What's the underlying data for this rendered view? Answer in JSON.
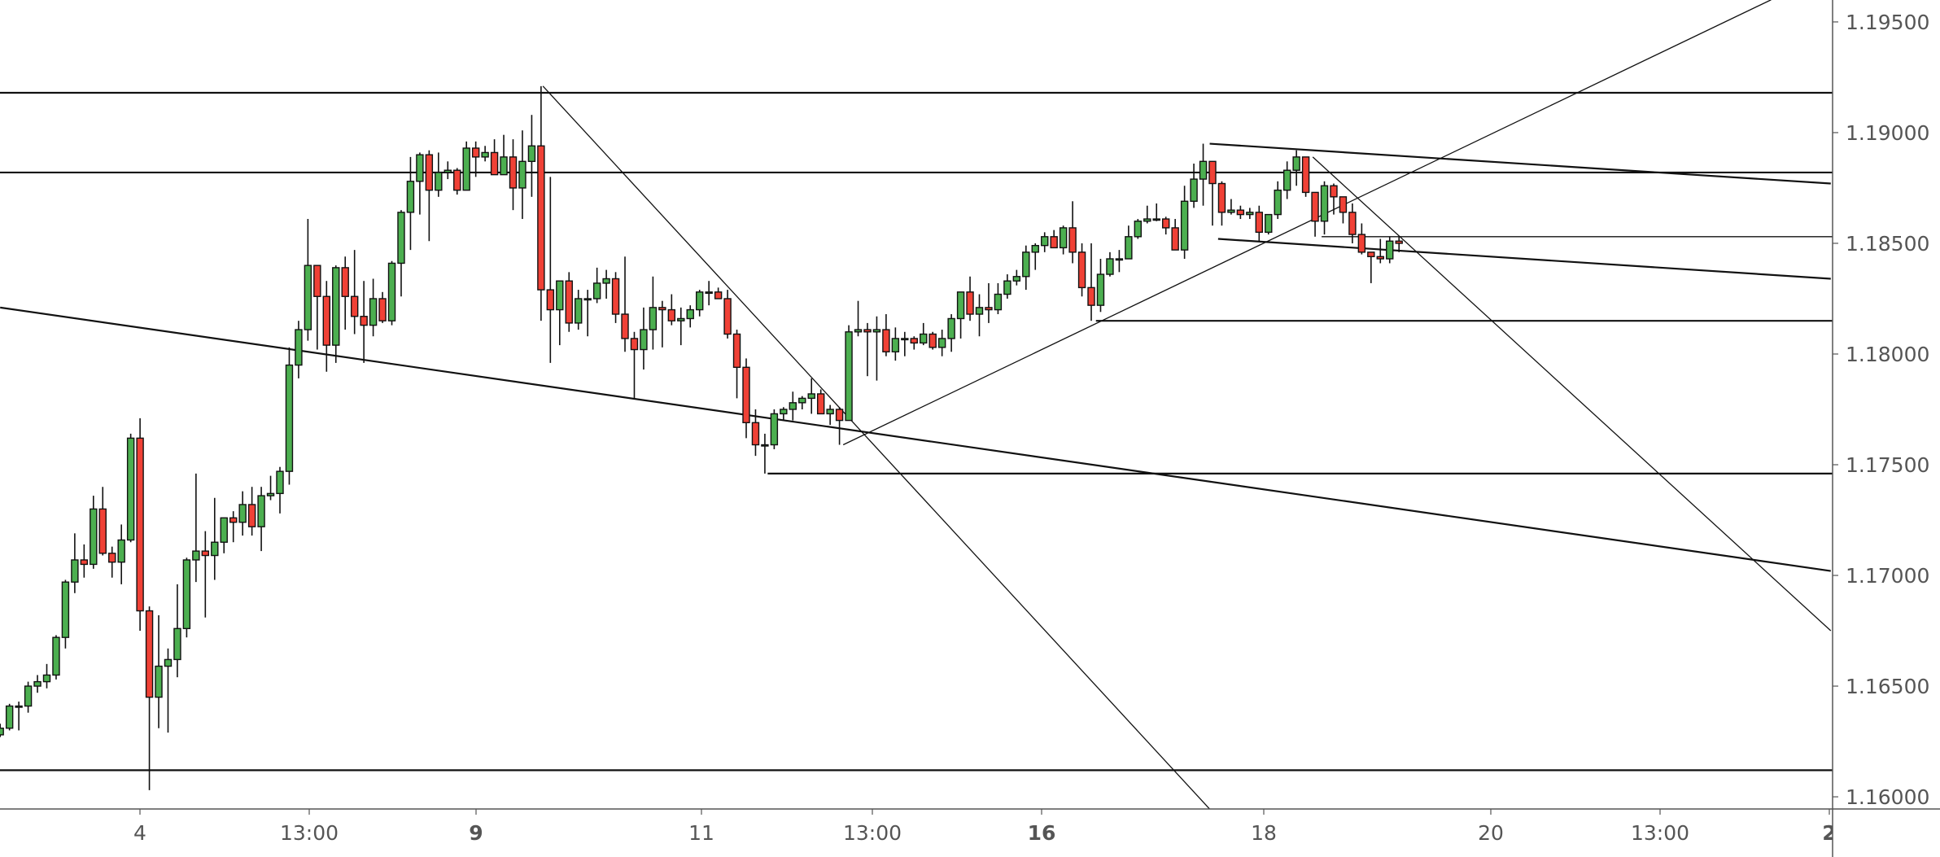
{
  "chart_data": {
    "type": "candlestick",
    "title": "",
    "colors": {
      "up": "#4caf50",
      "down": "#f04136",
      "outline": "#111111",
      "axis_text": "#555555",
      "axis_line": "#555555",
      "drawing": "#111111"
    },
    "grid": false,
    "y_axis": {
      "side": "right",
      "ylim": [
        1.1595,
        1.196
      ],
      "ticks": [
        "1.19500",
        "1.19000",
        "1.18500",
        "1.18000",
        "1.17500",
        "1.17000",
        "1.16500",
        "1.16000"
      ]
    },
    "x_axis": {
      "ticks": [
        {
          "label": "4",
          "bold": false
        },
        {
          "label": "13:00",
          "bold": false
        },
        {
          "label": "9",
          "bold": true
        },
        {
          "label": "11",
          "bold": false
        },
        {
          "label": "13:00",
          "bold": false
        },
        {
          "label": "16",
          "bold": true
        },
        {
          "label": "18",
          "bold": false
        },
        {
          "label": "20",
          "bold": false
        },
        {
          "label": "13:00",
          "bold": false
        },
        {
          "label": "2",
          "bold": true
        }
      ]
    },
    "ohlc_fields": [
      "open",
      "high",
      "low",
      "close"
    ],
    "candles": [
      [
        1.1628,
        1.1633,
        1.1627,
        1.1631
      ],
      [
        1.1631,
        1.1642,
        1.163,
        1.1641
      ],
      [
        1.1641,
        1.1643,
        1.163,
        1.1641
      ],
      [
        1.1641,
        1.1652,
        1.1638,
        1.165
      ],
      [
        1.165,
        1.1655,
        1.1647,
        1.1652
      ],
      [
        1.1652,
        1.166,
        1.1649,
        1.1655
      ],
      [
        1.1655,
        1.1673,
        1.1653,
        1.1672
      ],
      [
        1.1672,
        1.1698,
        1.1667,
        1.1697
      ],
      [
        1.1697,
        1.1719,
        1.1692,
        1.1707
      ],
      [
        1.1707,
        1.1714,
        1.1699,
        1.1705
      ],
      [
        1.1705,
        1.1736,
        1.1703,
        1.173
      ],
      [
        1.173,
        1.174,
        1.1709,
        1.171
      ],
      [
        1.171,
        1.1713,
        1.1699,
        1.1706
      ],
      [
        1.1706,
        1.1723,
        1.1696,
        1.1716
      ],
      [
        1.1716,
        1.1764,
        1.1715,
        1.1762
      ],
      [
        1.1762,
        1.1771,
        1.1675,
        1.1684
      ],
      [
        1.1684,
        1.1686,
        1.1603,
        1.1645
      ],
      [
        1.1645,
        1.1682,
        1.1631,
        1.1659
      ],
      [
        1.1659,
        1.1667,
        1.1629,
        1.1662
      ],
      [
        1.1662,
        1.1696,
        1.1654,
        1.1676
      ],
      [
        1.1676,
        1.1708,
        1.1672,
        1.1707
      ],
      [
        1.1707,
        1.1746,
        1.1697,
        1.1711
      ],
      [
        1.1711,
        1.172,
        1.1681,
        1.1709
      ],
      [
        1.1709,
        1.1735,
        1.1698,
        1.1715
      ],
      [
        1.1715,
        1.1726,
        1.171,
        1.1726
      ],
      [
        1.1726,
        1.1729,
        1.1715,
        1.1724
      ],
      [
        1.1724,
        1.1738,
        1.1718,
        1.1732
      ],
      [
        1.1732,
        1.174,
        1.1718,
        1.1722
      ],
      [
        1.1722,
        1.174,
        1.1711,
        1.1736
      ],
      [
        1.1736,
        1.1745,
        1.1734,
        1.1737
      ],
      [
        1.1737,
        1.1749,
        1.1728,
        1.1747
      ],
      [
        1.1747,
        1.1803,
        1.1741,
        1.1795
      ],
      [
        1.1795,
        1.1815,
        1.1789,
        1.1811
      ],
      [
        1.1811,
        1.1861,
        1.1806,
        1.184
      ],
      [
        1.184,
        1.184,
        1.1802,
        1.1826
      ],
      [
        1.1826,
        1.1833,
        1.1792,
        1.1804
      ],
      [
        1.1804,
        1.184,
        1.1796,
        1.1839
      ],
      [
        1.1839,
        1.1844,
        1.1811,
        1.1826
      ],
      [
        1.1826,
        1.1847,
        1.1809,
        1.1817
      ],
      [
        1.1817,
        1.1833,
        1.1796,
        1.1813
      ],
      [
        1.1813,
        1.1834,
        1.1808,
        1.1825
      ],
      [
        1.1825,
        1.1828,
        1.1814,
        1.1815
      ],
      [
        1.1815,
        1.1842,
        1.1813,
        1.1841
      ],
      [
        1.1841,
        1.1865,
        1.1826,
        1.1864
      ],
      [
        1.1864,
        1.1889,
        1.1847,
        1.1878
      ],
      [
        1.1878,
        1.1891,
        1.1863,
        1.189
      ],
      [
        1.189,
        1.1892,
        1.1851,
        1.1874
      ],
      [
        1.1874,
        1.1891,
        1.1871,
        1.1882
      ],
      [
        1.1882,
        1.1887,
        1.1879,
        1.1883
      ],
      [
        1.1883,
        1.1884,
        1.1872,
        1.1874
      ],
      [
        1.1874,
        1.1896,
        1.1874,
        1.1893
      ],
      [
        1.1893,
        1.1896,
        1.188,
        1.1889
      ],
      [
        1.1889,
        1.1894,
        1.1887,
        1.1891
      ],
      [
        1.1891,
        1.1897,
        1.1881,
        1.1881
      ],
      [
        1.1881,
        1.1899,
        1.1881,
        1.1889
      ],
      [
        1.1889,
        1.1897,
        1.1865,
        1.1875
      ],
      [
        1.1875,
        1.1901,
        1.1861,
        1.1887
      ],
      [
        1.1887,
        1.1908,
        1.1871,
        1.1894
      ],
      [
        1.1894,
        1.1921,
        1.1815,
        1.1829
      ],
      [
        1.1829,
        1.188,
        1.1796,
        1.182
      ],
      [
        1.182,
        1.1833,
        1.1804,
        1.1833
      ],
      [
        1.1833,
        1.1837,
        1.181,
        1.1814
      ],
      [
        1.1814,
        1.1829,
        1.1811,
        1.1825
      ],
      [
        1.1825,
        1.1829,
        1.1808,
        1.1825
      ],
      [
        1.1825,
        1.1839,
        1.1823,
        1.1832
      ],
      [
        1.1832,
        1.1838,
        1.1825,
        1.1834
      ],
      [
        1.1834,
        1.1837,
        1.1814,
        1.1818
      ],
      [
        1.1818,
        1.1844,
        1.1801,
        1.1807
      ],
      [
        1.1807,
        1.181,
        1.178,
        1.1802
      ],
      [
        1.1802,
        1.1821,
        1.1793,
        1.1811
      ],
      [
        1.1811,
        1.1835,
        1.1802,
        1.1821
      ],
      [
        1.1821,
        1.1824,
        1.1803,
        1.182
      ],
      [
        1.182,
        1.1827,
        1.1813,
        1.1815
      ],
      [
        1.1815,
        1.1821,
        1.1804,
        1.1816
      ],
      [
        1.1816,
        1.1822,
        1.1812,
        1.182
      ],
      [
        1.182,
        1.1829,
        1.1817,
        1.1828
      ],
      [
        1.1828,
        1.1833,
        1.1822,
        1.1828
      ],
      [
        1.1828,
        1.183,
        1.1825,
        1.1825
      ],
      [
        1.1825,
        1.1829,
        1.1807,
        1.1809
      ],
      [
        1.1809,
        1.1811,
        1.178,
        1.1794
      ],
      [
        1.1794,
        1.1798,
        1.1762,
        1.1769
      ],
      [
        1.1769,
        1.1775,
        1.1754,
        1.1759
      ],
      [
        1.1759,
        1.1764,
        1.1746,
        1.1759
      ],
      [
        1.1759,
        1.1775,
        1.1757,
        1.1773
      ],
      [
        1.1773,
        1.1776,
        1.177,
        1.1775
      ],
      [
        1.1775,
        1.1783,
        1.177,
        1.1778
      ],
      [
        1.1778,
        1.1781,
        1.1775,
        1.178
      ],
      [
        1.178,
        1.1789,
        1.1773,
        1.1782
      ],
      [
        1.1782,
        1.1784,
        1.1773,
        1.1773
      ],
      [
        1.1773,
        1.1777,
        1.1768,
        1.1775
      ],
      [
        1.1775,
        1.1776,
        1.1759,
        1.177
      ],
      [
        1.177,
        1.1813,
        1.177,
        1.181
      ],
      [
        1.181,
        1.1824,
        1.1808,
        1.1811
      ],
      [
        1.1811,
        1.1814,
        1.179,
        1.181
      ],
      [
        1.181,
        1.1817,
        1.1788,
        1.1811
      ],
      [
        1.1811,
        1.1818,
        1.1799,
        1.1801
      ],
      [
        1.1801,
        1.1812,
        1.1797,
        1.1807
      ],
      [
        1.1807,
        1.181,
        1.1799,
        1.1807
      ],
      [
        1.1807,
        1.1808,
        1.1802,
        1.1805
      ],
      [
        1.1805,
        1.1814,
        1.1804,
        1.1809
      ],
      [
        1.1809,
        1.181,
        1.1802,
        1.1803
      ],
      [
        1.1803,
        1.1811,
        1.1799,
        1.1807
      ],
      [
        1.1807,
        1.1818,
        1.1801,
        1.1816
      ],
      [
        1.1816,
        1.1828,
        1.1807,
        1.1828
      ],
      [
        1.1828,
        1.1835,
        1.1815,
        1.1818
      ],
      [
        1.1818,
        1.1827,
        1.1808,
        1.1821
      ],
      [
        1.1821,
        1.1832,
        1.1814,
        1.182
      ],
      [
        1.182,
        1.1832,
        1.1818,
        1.1827
      ],
      [
        1.1827,
        1.1836,
        1.1825,
        1.1833
      ],
      [
        1.1833,
        1.1838,
        1.1831,
        1.1835
      ],
      [
        1.1835,
        1.1849,
        1.1829,
        1.1846
      ],
      [
        1.1846,
        1.185,
        1.1838,
        1.1849
      ],
      [
        1.1849,
        1.1855,
        1.1846,
        1.1853
      ],
      [
        1.1853,
        1.1856,
        1.1848,
        1.1848
      ],
      [
        1.1848,
        1.1858,
        1.1845,
        1.1857
      ],
      [
        1.1857,
        1.1869,
        1.1841,
        1.1846
      ],
      [
        1.1846,
        1.185,
        1.1826,
        1.183
      ],
      [
        1.183,
        1.185,
        1.1815,
        1.1822
      ],
      [
        1.1822,
        1.1843,
        1.1819,
        1.1836
      ],
      [
        1.1836,
        1.1846,
        1.1835,
        1.1843
      ],
      [
        1.1843,
        1.1847,
        1.1837,
        1.1843
      ],
      [
        1.1843,
        1.1858,
        1.1843,
        1.1853
      ],
      [
        1.1853,
        1.1861,
        1.1852,
        1.186
      ],
      [
        1.186,
        1.1867,
        1.1859,
        1.1861
      ],
      [
        1.1861,
        1.1868,
        1.186,
        1.1861
      ],
      [
        1.1861,
        1.1862,
        1.1854,
        1.1857
      ],
      [
        1.1857,
        1.1861,
        1.1847,
        1.1847
      ],
      [
        1.1847,
        1.1876,
        1.1843,
        1.1869
      ],
      [
        1.1869,
        1.1886,
        1.1866,
        1.1879
      ],
      [
        1.1879,
        1.1895,
        1.1867,
        1.1887
      ],
      [
        1.1887,
        1.1887,
        1.1858,
        1.1877
      ],
      [
        1.1877,
        1.1878,
        1.1858,
        1.1864
      ],
      [
        1.1864,
        1.187,
        1.1863,
        1.1865
      ],
      [
        1.1865,
        1.1867,
        1.1861,
        1.1863
      ],
      [
        1.1863,
        1.1866,
        1.1861,
        1.1864
      ],
      [
        1.1864,
        1.1867,
        1.1851,
        1.1855
      ],
      [
        1.1855,
        1.1863,
        1.1854,
        1.1863
      ],
      [
        1.1863,
        1.1878,
        1.1861,
        1.1874
      ],
      [
        1.1874,
        1.1887,
        1.187,
        1.1883
      ],
      [
        1.1883,
        1.1892,
        1.1876,
        1.1889
      ],
      [
        1.1889,
        1.1889,
        1.1871,
        1.1873
      ],
      [
        1.1873,
        1.1873,
        1.1853,
        1.186
      ],
      [
        1.186,
        1.1878,
        1.1854,
        1.1876
      ],
      [
        1.1876,
        1.1877,
        1.1863,
        1.1871
      ],
      [
        1.1871,
        1.1871,
        1.1859,
        1.1864
      ],
      [
        1.1864,
        1.1868,
        1.185,
        1.1854
      ],
      [
        1.1854,
        1.1859,
        1.1845,
        1.1846
      ],
      [
        1.1846,
        1.1846,
        1.1832,
        1.1844
      ],
      [
        1.1844,
        1.1852,
        1.1841,
        1.1843
      ],
      [
        1.1843,
        1.1853,
        1.1841,
        1.1851
      ],
      [
        1.1851,
        1.1853,
        1.1846,
        1.185
      ]
    ],
    "drawings": [
      {
        "kind": "horizontal-line",
        "price": 1.1918,
        "weight": "thick"
      },
      {
        "kind": "horizontal-line",
        "price": 1.1882,
        "weight": "thick"
      },
      {
        "kind": "horizontal-line",
        "price": 1.1612,
        "weight": "thick"
      },
      {
        "kind": "horizontal-ray",
        "from_bar": 82.3,
        "price": 1.1746,
        "weight": "thick"
      },
      {
        "kind": "horizontal-ray",
        "from_bar": 117.5,
        "price": 1.1815,
        "weight": "thick"
      },
      {
        "kind": "horizontal-ray",
        "from_bar": 141.7,
        "price": 1.1853,
        "weight": "thin"
      },
      {
        "kind": "trend-line",
        "from": [
          0,
          1.1821
        ],
        "to": [
          196.3,
          1.1702
        ],
        "weight": "thick"
      },
      {
        "kind": "trend-line",
        "from": [
          129.7,
          1.1895
        ],
        "to": [
          196.3,
          1.1877
        ],
        "weight": "thick"
      },
      {
        "kind": "trend-line",
        "from": [
          130.6,
          1.1852
        ],
        "to": [
          196.3,
          1.1834
        ],
        "weight": "thick"
      },
      {
        "kind": "trend-line",
        "from": [
          58.2,
          1.1921
        ],
        "to": [
          129.8,
          1.1594
        ],
        "weight": "thin"
      },
      {
        "kind": "trend-line",
        "from": [
          90.4,
          1.1759
        ],
        "to": [
          189.9,
          1.196
        ],
        "weight": "thin"
      },
      {
        "kind": "trend-line",
        "from": [
          140.75,
          1.1889
        ],
        "to": [
          196.3,
          1.1675
        ],
        "weight": "thin"
      }
    ]
  }
}
